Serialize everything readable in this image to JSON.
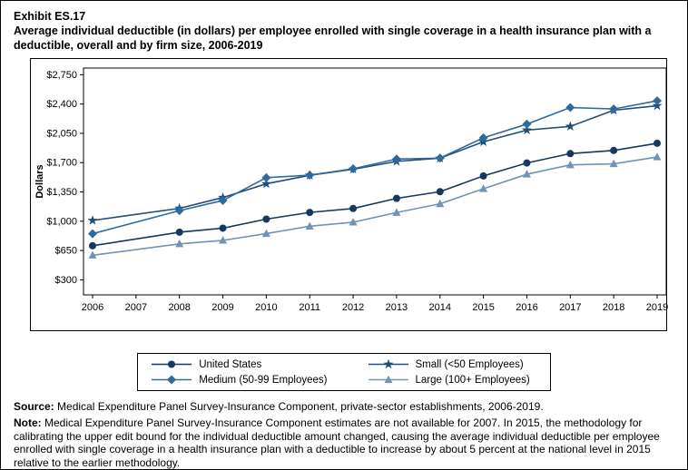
{
  "header": {
    "exhibit": "Exhibit ES.17",
    "title": "Average individual deductible (in dollars) per employee enrolled with single coverage in a health insurance plan with a deductible, overall and by firm size, 2006-2019"
  },
  "footer": {
    "source_label": "Source:",
    "source_text": "Medical Expenditure Panel Survey-Insurance Component, private-sector establishments, 2006-2019.",
    "note_label": "Note:",
    "note_text": "Medical Expenditure Panel Survey-Insurance Component estimates are not available for 2007. In 2015, the methodology for calibrating the upper edit bound for the individual deductible amount changed, causing the average individual deductible per employee enrolled with single coverage in a health insurance plan with a deductible to increase by about 5 percent at the national level in 2015 relative to the earlier methodology."
  },
  "chart_data": {
    "type": "line",
    "title": "Average individual deductible (in dollars) per employee enrolled with single coverage in a health insurance plan with a deductible, overall and by firm size, 2006-2019",
    "xlabel": "",
    "ylabel": "Dollars",
    "ylim": [
      120,
      2830
    ],
    "grid": false,
    "y_ticks": [
      300,
      650,
      1000,
      1350,
      1700,
      2050,
      2400,
      2750
    ],
    "x_ticks": [
      2006,
      2007,
      2008,
      2009,
      2010,
      2011,
      2012,
      2013,
      2014,
      2015,
      2016,
      2017,
      2018,
      2019
    ],
    "x": [
      2006,
      2008,
      2009,
      2010,
      2011,
      2012,
      2013,
      2014,
      2015,
      2016,
      2017,
      2018,
      2019
    ],
    "missing_years_note": "No estimates for 2007",
    "series": [
      {
        "name": "United States",
        "marker": "circle",
        "color": "#17375e",
        "values": [
          707,
          869,
          917,
          1025,
          1105,
          1152,
          1273,
          1353,
          1541,
          1696,
          1808,
          1846,
          1931
        ]
      },
      {
        "name": "Small (<50 Employees)",
        "marker": "star",
        "color": "#1f4e79",
        "values": [
          1009,
          1154,
          1283,
          1447,
          1549,
          1620,
          1715,
          1753,
          1949,
          2089,
          2133,
          2326,
          2379
        ]
      },
      {
        "name": "Medium (50-99 Employees)",
        "marker": "diamond",
        "color": "#2d6a9e",
        "values": [
          851,
          1127,
          1248,
          1520,
          1551,
          1627,
          1743,
          1754,
          1997,
          2160,
          2358,
          2341,
          2439
        ]
      },
      {
        "name": "Large (100+ Employees)",
        "marker": "triangle",
        "color": "#7193b4",
        "values": [
          594,
          729,
          771,
          852,
          940,
          988,
          1104,
          1208,
          1388,
          1561,
          1673,
          1686,
          1767
        ]
      }
    ],
    "legend": {
      "position": "bottom",
      "order": [
        "United States",
        "Small (<50 Employees)",
        "Medium (50-99 Employees)",
        "Large (100+ Employees)"
      ]
    }
  }
}
